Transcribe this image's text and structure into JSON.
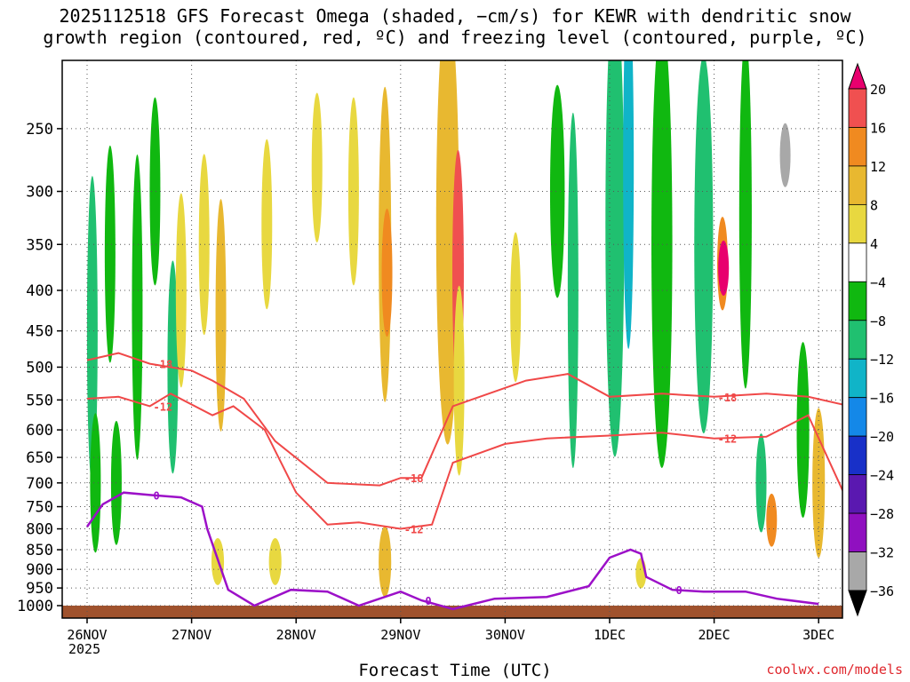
{
  "title_line1": "2025112518 GFS Forecast Omega (shaded, −cm/s) for KEWR with dendritic snow",
  "title_line2": "growth region (contoured, red, ºC) and freezing level (contoured, purple, ºC)",
  "xlabel": "Forecast Time (UTC)",
  "year_label": "2025",
  "credit": "coolwx.com/models",
  "colors": {
    "dgz": "#f04848",
    "freezing": "#9c10c8",
    "ground": "#a0522d",
    "grid": "#555555"
  },
  "chart_data": {
    "type": "heatmap",
    "title": "2025112518 GFS Forecast Omega (shaded, −cm/s) for KEWR with dendritic snow growth region (contoured, red, ºC) and freezing level (contoured, purple, ºC)",
    "xlabel": "Forecast Time (UTC)",
    "ylabel": "",
    "y_scale": "log-pressure",
    "y_ticks": [
      "250",
      "300",
      "350",
      "400",
      "450",
      "500",
      "550",
      "600",
      "650",
      "700",
      "750",
      "800",
      "850",
      "900",
      "950",
      "1000"
    ],
    "x_ticks": [
      "26NOV",
      "27NOV",
      "28NOV",
      "29NOV",
      "30NOV",
      "1DEC",
      "2DEC",
      "3DEC"
    ],
    "grid": true,
    "colorbar": {
      "labels": [
        "20",
        "16",
        "12",
        "8",
        "4",
        "−4",
        "−8",
        "−12",
        "−16",
        "−20",
        "−24",
        "−28",
        "−32",
        "−36"
      ],
      "colors": [
        "#e8006e",
        "#f05050",
        "#f08a20",
        "#e8b830",
        "#e8d840",
        "#ffffff",
        "#10b810",
        "#20c070",
        "#10b4c8",
        "#1488e8",
        "#1830c8",
        "#5a18b0",
        "#9010c0",
        "#a8a8a8",
        "#000000"
      ]
    },
    "cells": [
      {
        "t": 0.05,
        "p": 450,
        "dt": 0.06,
        "dp": 380,
        "v": -10
      },
      {
        "t": 0.08,
        "p": 700,
        "dt": 0.05,
        "dp": 280,
        "v": -8
      },
      {
        "t": 0.22,
        "p": 360,
        "dt": 0.06,
        "dp": 220,
        "v": -8
      },
      {
        "t": 0.28,
        "p": 700,
        "dt": 0.05,
        "dp": 250,
        "v": -8
      },
      {
        "t": 0.48,
        "p": 420,
        "dt": 0.06,
        "dp": 350,
        "v": -8
      },
      {
        "t": 0.65,
        "p": 300,
        "dt": 0.06,
        "dp": 160,
        "v": -8
      },
      {
        "t": 0.82,
        "p": 500,
        "dt": 0.05,
        "dp": 300,
        "v": -10
      },
      {
        "t": 0.9,
        "p": 400,
        "dt": 0.05,
        "dp": 220,
        "v": 6
      },
      {
        "t": 1.12,
        "p": 350,
        "dt": 0.05,
        "dp": 180,
        "v": 6
      },
      {
        "t": 1.28,
        "p": 430,
        "dt": 0.07,
        "dp": 280,
        "v": 8
      },
      {
        "t": 1.25,
        "p": 880,
        "dt": 0.12,
        "dp": 120,
        "v": 6
      },
      {
        "t": 1.72,
        "p": 330,
        "dt": 0.07,
        "dp": 160,
        "v": 6
      },
      {
        "t": 1.8,
        "p": 880,
        "dt": 0.12,
        "dp": 120,
        "v": 5
      },
      {
        "t": 2.2,
        "p": 280,
        "dt": 0.06,
        "dp": 120,
        "v": 5
      },
      {
        "t": 2.55,
        "p": 300,
        "dt": 0.06,
        "dp": 160,
        "v": 5
      },
      {
        "t": 2.85,
        "p": 350,
        "dt": 0.12,
        "dp": 300,
        "v": 10
      },
      {
        "t": 2.87,
        "p": 380,
        "dt": 0.05,
        "dp": 140,
        "v": 12
      },
      {
        "t": 2.85,
        "p": 880,
        "dt": 0.12,
        "dp": 180,
        "v": 9
      },
      {
        "t": 3.45,
        "p": 330,
        "dt": 0.22,
        "dp": 420,
        "v": 8
      },
      {
        "t": 3.55,
        "p": 380,
        "dt": 0.11,
        "dp": 260,
        "v": 16
      },
      {
        "t": 3.56,
        "p": 520,
        "dt": 0.1,
        "dp": 280,
        "v": 6
      },
      {
        "t": 4.1,
        "p": 420,
        "dt": 0.06,
        "dp": 180,
        "v": 5
      },
      {
        "t": 4.5,
        "p": 300,
        "dt": 0.14,
        "dp": 180,
        "v": -8
      },
      {
        "t": 4.65,
        "p": 400,
        "dt": 0.09,
        "dp": 380,
        "v": -10
      },
      {
        "t": 5.05,
        "p": 330,
        "dt": 0.18,
        "dp": 500,
        "v": -12
      },
      {
        "t": 5.18,
        "p": 280,
        "dt": 0.1,
        "dp": 300,
        "v": -16
      },
      {
        "t": 5.5,
        "p": 350,
        "dt": 0.2,
        "dp": 400,
        "v": -8
      },
      {
        "t": 5.3,
        "p": 910,
        "dt": 0.08,
        "dp": 80,
        "v": 6
      },
      {
        "t": 5.9,
        "p": 350,
        "dt": 0.18,
        "dp": 350,
        "v": -10
      },
      {
        "t": 6.08,
        "p": 370,
        "dt": 0.1,
        "dp": 100,
        "v": 14
      },
      {
        "t": 6.09,
        "p": 375,
        "dt": 0.05,
        "dp": 60,
        "v": 20
      },
      {
        "t": 6.3,
        "p": 320,
        "dt": 0.12,
        "dp": 300,
        "v": -8
      },
      {
        "t": 6.45,
        "p": 700,
        "dt": 0.08,
        "dp": 200,
        "v": -12
      },
      {
        "t": 6.55,
        "p": 780,
        "dt": 0.06,
        "dp": 120,
        "v": 12
      },
      {
        "t": 6.68,
        "p": 270,
        "dt": 0.04,
        "dp": 50,
        "v": -36
      },
      {
        "t": 6.85,
        "p": 600,
        "dt": 0.12,
        "dp": 300,
        "v": -8
      },
      {
        "t": 7.0,
        "p": 700,
        "dt": 0.12,
        "dp": 300,
        "v": 8
      }
    ],
    "contours": [
      {
        "label": "-18",
        "color": "dgz",
        "points": [
          [
            0,
            490
          ],
          [
            0.3,
            480
          ],
          [
            0.6,
            495
          ],
          [
            1.0,
            505
          ],
          [
            1.2,
            520
          ],
          [
            1.5,
            548
          ],
          [
            1.8,
            620
          ],
          [
            2.3,
            700
          ],
          [
            2.8,
            705
          ],
          [
            3.0,
            690
          ],
          [
            3.2,
            690
          ],
          [
            3.5,
            560
          ],
          [
            4.2,
            520
          ],
          [
            4.6,
            510
          ],
          [
            5.0,
            545
          ],
          [
            5.5,
            540
          ],
          [
            6.0,
            545
          ],
          [
            6.5,
            540
          ],
          [
            6.9,
            545
          ],
          [
            7.3,
            560
          ]
        ]
      },
      {
        "label": "-12",
        "color": "dgz",
        "points": [
          [
            0,
            548
          ],
          [
            0.3,
            545
          ],
          [
            0.6,
            560
          ],
          [
            0.8,
            540
          ],
          [
            1.2,
            575
          ],
          [
            1.4,
            560
          ],
          [
            1.7,
            600
          ],
          [
            2.0,
            720
          ],
          [
            2.3,
            790
          ],
          [
            2.6,
            785
          ],
          [
            3.0,
            800
          ],
          [
            3.3,
            790
          ],
          [
            3.5,
            660
          ],
          [
            4.0,
            625
          ],
          [
            4.4,
            615
          ],
          [
            5.0,
            610
          ],
          [
            5.5,
            605
          ],
          [
            6.0,
            615
          ],
          [
            6.5,
            612
          ],
          [
            6.9,
            575
          ],
          [
            7.3,
            750
          ]
        ]
      },
      {
        "label": "0",
        "color": "freezing",
        "points": [
          [
            0,
            795
          ],
          [
            0.15,
            745
          ],
          [
            0.35,
            720
          ],
          [
            0.6,
            725
          ],
          [
            0.9,
            730
          ],
          [
            1.1,
            750
          ],
          [
            1.15,
            800
          ],
          [
            1.35,
            955
          ],
          [
            1.6,
            1000
          ],
          [
            1.95,
            955
          ],
          [
            2.3,
            960
          ],
          [
            2.6,
            1000
          ],
          [
            3.0,
            960
          ],
          [
            3.2,
            985
          ],
          [
            3.5,
            1010
          ],
          [
            3.9,
            980
          ],
          [
            4.4,
            975
          ],
          [
            4.8,
            945
          ],
          [
            5.0,
            870
          ],
          [
            5.2,
            850
          ],
          [
            5.3,
            860
          ],
          [
            5.35,
            920
          ],
          [
            5.6,
            955
          ],
          [
            5.9,
            960
          ],
          [
            6.3,
            960
          ],
          [
            6.6,
            980
          ],
          [
            7.0,
            995
          ]
        ]
      }
    ]
  }
}
